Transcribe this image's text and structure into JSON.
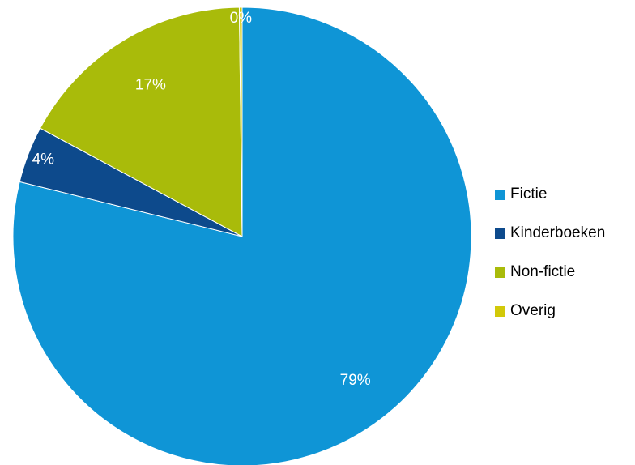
{
  "chart_data": {
    "type": "pie",
    "title": "",
    "categories": [
      "Fictie",
      "Kinderboeken",
      "Non-fictie",
      "Overig"
    ],
    "values": [
      79,
      4,
      17,
      0.2
    ],
    "labels": [
      "79%",
      "4%",
      "17%",
      "0%"
    ],
    "colors": [
      "#0f95d6",
      "#0d4a8c",
      "#a9bb0a",
      "#d2c909"
    ],
    "start_angle_deg": 0,
    "direction": "clockwise",
    "legend_position": "right"
  }
}
